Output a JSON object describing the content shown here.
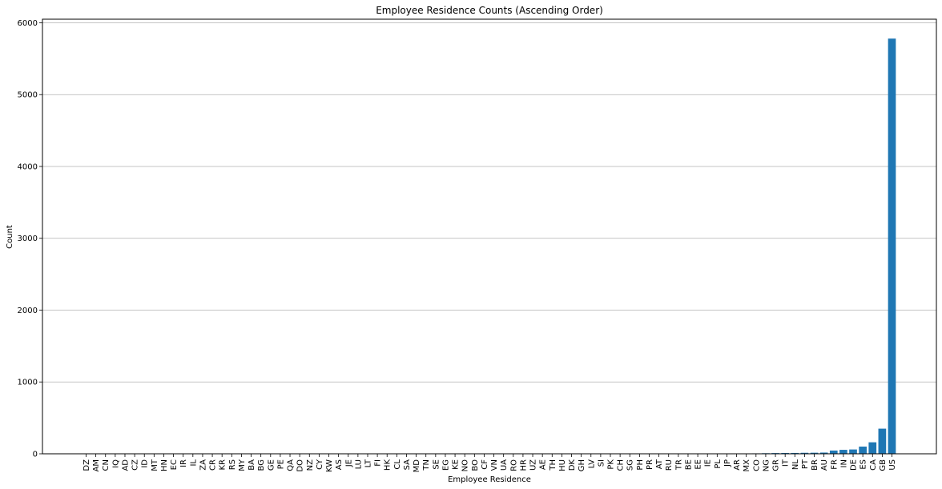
{
  "chart_data": {
    "type": "bar",
    "title": "Employee Residence Counts (Ascending Order)",
    "xlabel": "Employee Residence",
    "ylabel": "Count",
    "ylim": [
      0,
      6050
    ],
    "yticks": [
      0,
      1000,
      2000,
      3000,
      4000,
      5000,
      6000
    ],
    "grid": "y",
    "bar_color": "#1f77b4",
    "categories": [
      "DZ",
      "AM",
      "CN",
      "IQ",
      "AD",
      "CZ",
      "ID",
      "MT",
      "HN",
      "EC",
      "IR",
      "IL",
      "ZA",
      "CR",
      "KR",
      "RS",
      "MY",
      "BA",
      "BG",
      "GE",
      "PE",
      "QA",
      "DO",
      "NZ",
      "CY",
      "KW",
      "AS",
      "JE",
      "LU",
      "LT",
      "FI",
      "HK",
      "CL",
      "SA",
      "MD",
      "TN",
      "SE",
      "EG",
      "KE",
      "NO",
      "BO",
      "CF",
      "VN",
      "UA",
      "RO",
      "HR",
      "UZ",
      "AE",
      "TH",
      "HU",
      "DK",
      "GH",
      "LV",
      "SI",
      "PK",
      "CH",
      "SG",
      "PH",
      "PR",
      "AT",
      "RU",
      "TR",
      "BE",
      "EE",
      "IE",
      "PL",
      "JP",
      "AR",
      "MX",
      "CO",
      "NG",
      "GR",
      "IT",
      "NL",
      "PT",
      "BR",
      "AU",
      "FR",
      "IN",
      "DE",
      "ES",
      "CA",
      "GB",
      "US"
    ],
    "values": [
      1,
      1,
      1,
      1,
      1,
      1,
      1,
      1,
      1,
      1,
      1,
      1,
      1,
      1,
      1,
      1,
      1,
      1,
      1,
      1,
      1,
      1,
      1,
      1,
      1,
      1,
      1,
      1,
      1,
      1,
      1,
      1,
      1,
      1,
      1,
      1,
      1,
      1,
      1,
      1,
      1,
      1,
      1,
      1,
      1,
      1,
      1,
      1,
      1,
      1,
      1,
      2,
      2,
      2,
      2,
      2,
      2,
      2,
      2,
      3,
      3,
      3,
      3,
      3,
      4,
      4,
      4,
      4,
      5,
      6,
      8,
      10,
      11,
      12,
      14,
      15,
      17,
      45,
      55,
      60,
      100,
      160,
      350,
      5780
    ]
  }
}
